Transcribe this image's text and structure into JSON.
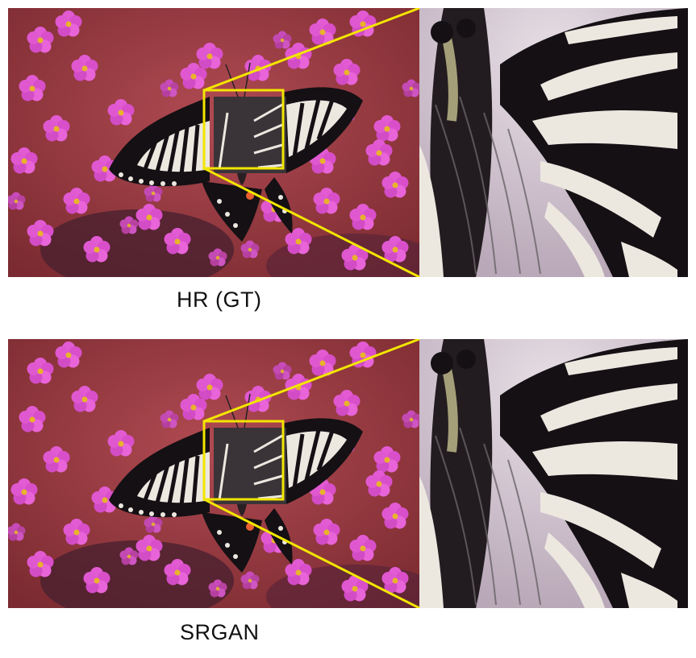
{
  "panels": [
    {
      "caption": "HR (GT)"
    },
    {
      "caption": "SRGAN"
    }
  ],
  "colors": {
    "highlight": "#f2e600",
    "background_wall": "#9a3a3e",
    "flowers": "#e25bd3",
    "flower_center": "#e8b42a",
    "wing_dark": "#141014",
    "wing_light": "#ece8e0"
  }
}
